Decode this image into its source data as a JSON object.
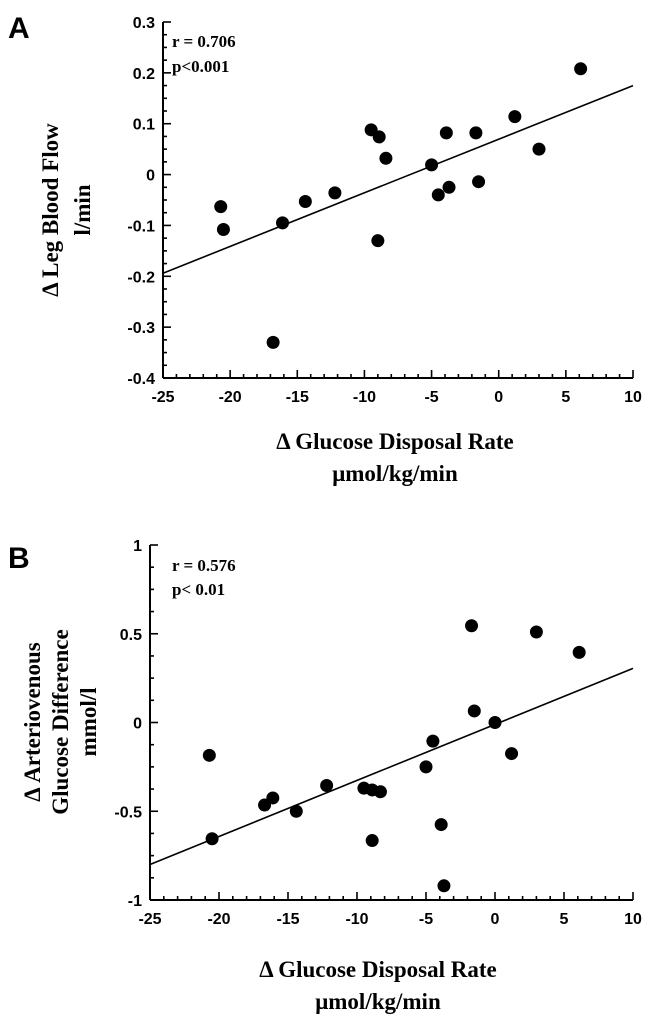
{
  "chart_data": [
    {
      "type": "scatter",
      "panel_label": "A",
      "xlabel": "Δ Glucose Disposal Rate",
      "xlabel_unit": "μmol/kg/min",
      "ylabel": "Δ Leg Blood Flow",
      "ylabel_unit": "l/min",
      "xlim": [
        -25,
        10
      ],
      "ylim": [
        -0.4,
        0.3
      ],
      "x_ticks": [
        -25,
        -20,
        -15,
        -10,
        -5,
        0,
        5,
        10
      ],
      "y_ticks": [
        -0.4,
        -0.3,
        -0.2,
        -0.1,
        0,
        0.1,
        0.2,
        0.3
      ],
      "x_tick_labels": [
        "-25",
        "-20",
        "-15",
        "-10",
        "-5",
        "0",
        "5",
        "10"
      ],
      "y_tick_labels": [
        "-0.4",
        "-0.3",
        "-0.2",
        "-0.1",
        "0",
        "0.1",
        "0.2",
        "0.3"
      ],
      "annotation_r": "r = 0.706",
      "annotation_p": "p<0.001",
      "points": [
        {
          "x": -20.7,
          "y": -0.063
        },
        {
          "x": -20.5,
          "y": -0.108
        },
        {
          "x": -16.8,
          "y": -0.33
        },
        {
          "x": -16.1,
          "y": -0.095
        },
        {
          "x": -14.4,
          "y": -0.053
        },
        {
          "x": -12.2,
          "y": -0.036
        },
        {
          "x": -9.5,
          "y": 0.088
        },
        {
          "x": -8.9,
          "y": 0.074
        },
        {
          "x": -9.0,
          "y": -0.13
        },
        {
          "x": -8.4,
          "y": 0.032
        },
        {
          "x": -5.0,
          "y": 0.019
        },
        {
          "x": -4.5,
          "y": -0.04
        },
        {
          "x": -3.9,
          "y": 0.082
        },
        {
          "x": -3.7,
          "y": -0.025
        },
        {
          "x": -1.7,
          "y": 0.082
        },
        {
          "x": -1.5,
          "y": -0.014
        },
        {
          "x": 1.2,
          "y": 0.114
        },
        {
          "x": 3.0,
          "y": 0.05
        },
        {
          "x": 6.1,
          "y": 0.208
        }
      ],
      "fit_line": {
        "x": [
          -25,
          10
        ],
        "y": [
          -0.194,
          0.175
        ]
      }
    },
    {
      "type": "scatter",
      "panel_label": "B",
      "xlabel": "Δ Glucose Disposal Rate",
      "xlabel_unit": "μmol/kg/min",
      "ylabel": "Δ Arteriovenous",
      "ylabel_line2": "Glucose  Difference",
      "ylabel_unit": "mmol/l",
      "xlim": [
        -25,
        10
      ],
      "ylim": [
        -1,
        1
      ],
      "x_ticks": [
        -25,
        -20,
        -15,
        -10,
        -5,
        0,
        5,
        10
      ],
      "y_ticks": [
        -1,
        -0.5,
        0,
        0.5,
        1
      ],
      "x_tick_labels": [
        "-25",
        "-20",
        "-15",
        "-10",
        "-5",
        "0",
        "5",
        "10"
      ],
      "y_tick_labels": [
        "-1",
        "-0.5",
        "0",
        "0.5",
        "1"
      ],
      "annotation_r": "r = 0.576",
      "annotation_p": "p< 0.01",
      "points": [
        {
          "x": -20.7,
          "y": -0.185
        },
        {
          "x": -20.5,
          "y": -0.655
        },
        {
          "x": -16.7,
          "y": -0.465
        },
        {
          "x": -16.1,
          "y": -0.425
        },
        {
          "x": -14.4,
          "y": -0.5
        },
        {
          "x": -12.2,
          "y": -0.355
        },
        {
          "x": -9.5,
          "y": -0.37
        },
        {
          "x": -8.9,
          "y": -0.38
        },
        {
          "x": -8.3,
          "y": -0.39
        },
        {
          "x": -8.9,
          "y": -0.665
        },
        {
          "x": -5.0,
          "y": -0.25
        },
        {
          "x": -4.5,
          "y": -0.105
        },
        {
          "x": -3.9,
          "y": -0.575
        },
        {
          "x": -3.7,
          "y": -0.92
        },
        {
          "x": -1.7,
          "y": 0.545
        },
        {
          "x": -1.5,
          "y": 0.065
        },
        {
          "x": 0.0,
          "y": 0.0
        },
        {
          "x": 1.2,
          "y": -0.175
        },
        {
          "x": 3.0,
          "y": 0.51
        },
        {
          "x": 6.1,
          "y": 0.395
        }
      ],
      "fit_line": {
        "x": [
          -25,
          10
        ],
        "y": [
          -0.8,
          0.305
        ]
      }
    }
  ]
}
